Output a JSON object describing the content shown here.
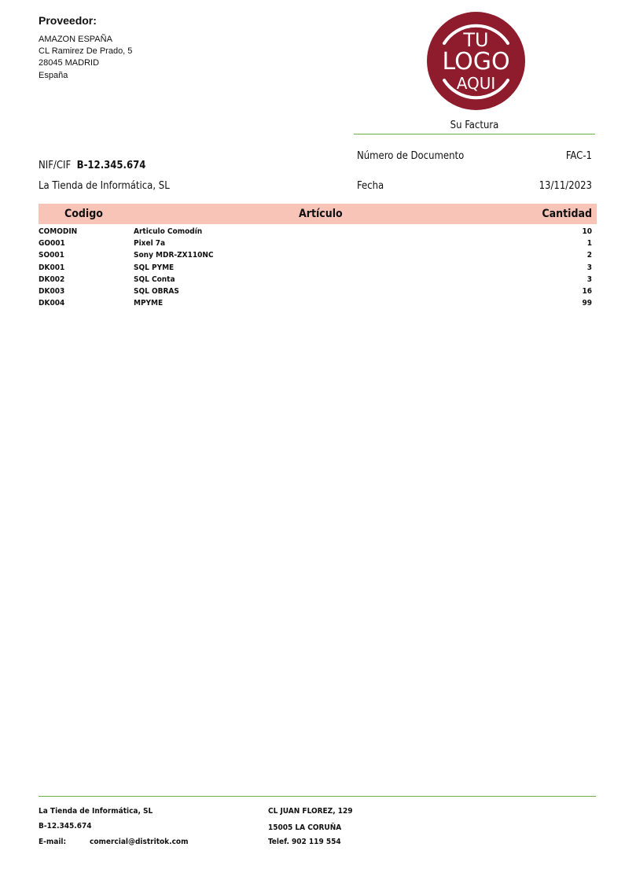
{
  "supplier": {
    "title": "Proveedor:",
    "lines": [
      "AMAZON ESPAÑA",
      "CL Ramirez De Prado, 5",
      "28045 MADRID",
      "España"
    ]
  },
  "logo": {
    "text_lines": [
      "TU",
      "LOGO",
      "AQUI"
    ],
    "color": "#8e1c2c"
  },
  "invoice": {
    "heading": "Su Factura",
    "doc_number_label": "Número de Documento",
    "doc_number": "FAC-1",
    "date_label": "Fecha",
    "date": "13/11/2023"
  },
  "customer": {
    "nif_label": "NIF/CIF",
    "nif": "B-12.345.674",
    "name": "La Tienda de Informática, SL"
  },
  "table": {
    "header_color": "#f8c4b8",
    "columns": [
      "Codigo",
      "Artículo",
      "Cantidad"
    ],
    "rows": [
      {
        "code": "COMODIN",
        "article": "Articulo Comodín",
        "qty": "10"
      },
      {
        "code": "GO001",
        "article": "Pixel 7a",
        "qty": "1"
      },
      {
        "code": "SO001",
        "article": "Sony MDR-ZX110NC",
        "qty": "2"
      },
      {
        "code": "DK001",
        "article": "SQL PYME",
        "qty": "3"
      },
      {
        "code": "DK002",
        "article": "SQL Conta",
        "qty": "3"
      },
      {
        "code": "DK003",
        "article": "SQL OBRAS",
        "qty": "16"
      },
      {
        "code": "DK004",
        "article": "MPYME",
        "qty": "99"
      }
    ]
  },
  "footer": {
    "company": "La Tienda de Informática, SL",
    "nif": "B-12.345.674",
    "email_label": "E-mail:",
    "email": "comercial@distritok.com",
    "address": "CL JUAN FLOREZ, 129",
    "city": "15005 LA CORUÑA",
    "phone": "Telef. 902 119 554"
  },
  "accent_line_color": "#70ad47"
}
